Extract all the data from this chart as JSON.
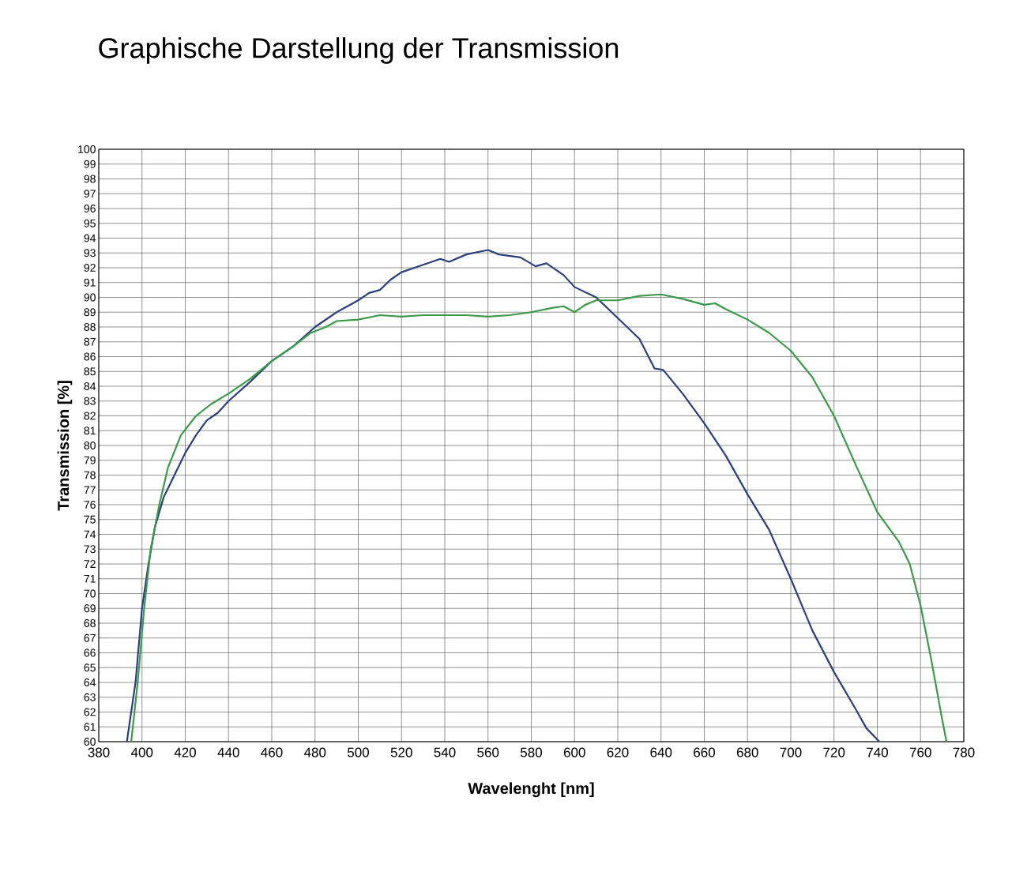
{
  "chart_data": {
    "type": "line",
    "title": "Graphische Darstellung der Transmission",
    "xlabel": "Wavelenght [nm]",
    "ylabel": "Transmission [%]",
    "xlim": [
      380,
      780
    ],
    "xticks": [
      380,
      400,
      420,
      440,
      460,
      480,
      500,
      520,
      540,
      560,
      580,
      600,
      620,
      640,
      660,
      680,
      700,
      720,
      740,
      760,
      780
    ],
    "ylim": [
      60,
      100
    ],
    "yticks": [
      60,
      61,
      62,
      63,
      64,
      65,
      66,
      67,
      68,
      69,
      70,
      71,
      72,
      73,
      74,
      75,
      76,
      77,
      78,
      79,
      80,
      81,
      82,
      83,
      84,
      85,
      86,
      87,
      88,
      89,
      90,
      91,
      92,
      93,
      94,
      95,
      96,
      97,
      98,
      99,
      100
    ],
    "grid": true,
    "series": [
      {
        "color": "#2b3f7f",
        "x": [
          393,
          397,
          400,
          403,
          406,
          410,
          415,
          420,
          425,
          430,
          435,
          440,
          450,
          460,
          470,
          480,
          490,
          500,
          505,
          510,
          515,
          520,
          530,
          538,
          542,
          550,
          560,
          565,
          575,
          582,
          587,
          595,
          600,
          610,
          620,
          630,
          637,
          641,
          650,
          660,
          670,
          680,
          690,
          700,
          710,
          720,
          730,
          735,
          741
        ],
        "values": [
          60,
          64,
          69,
          72,
          74.5,
          76.5,
          78,
          79.5,
          80.7,
          81.7,
          82.2,
          83,
          84.3,
          85.7,
          86.7,
          88,
          89,
          89.8,
          90.3,
          90.5,
          91.2,
          91.7,
          92.2,
          92.6,
          92.4,
          92.9,
          93.2,
          92.9,
          92.7,
          92.1,
          92.3,
          91.5,
          90.7,
          90,
          88.6,
          87.2,
          85.2,
          85.1,
          83.5,
          81.5,
          79.3,
          76.7,
          74.3,
          71,
          67.5,
          64.7,
          62.2,
          60.9,
          60
        ]
      },
      {
        "color": "#3a9a48",
        "x": [
          395,
          398,
          401,
          404,
          408,
          412,
          418,
          425,
          432,
          440,
          450,
          460,
          470,
          478,
          485,
          490,
          500,
          510,
          520,
          530,
          540,
          550,
          560,
          570,
          580,
          590,
          595,
          600,
          605,
          610,
          620,
          630,
          640,
          650,
          660,
          665,
          670,
          680,
          690,
          700,
          710,
          720,
          730,
          740,
          750,
          755,
          760,
          765,
          770,
          772
        ],
        "values": [
          60,
          64,
          69,
          73,
          76,
          78.5,
          80.7,
          82,
          82.8,
          83.5,
          84.5,
          85.7,
          86.7,
          87.6,
          88,
          88.4,
          88.5,
          88.8,
          88.7,
          88.8,
          88.8,
          88.8,
          88.7,
          88.8,
          89,
          89.3,
          89.4,
          89,
          89.5,
          89.8,
          89.8,
          90.1,
          90.2,
          89.9,
          89.5,
          89.6,
          89.2,
          88.5,
          87.6,
          86.4,
          84.6,
          82,
          78.7,
          75.5,
          73.5,
          72,
          69.2,
          65.5,
          61.5,
          60
        ]
      }
    ]
  }
}
